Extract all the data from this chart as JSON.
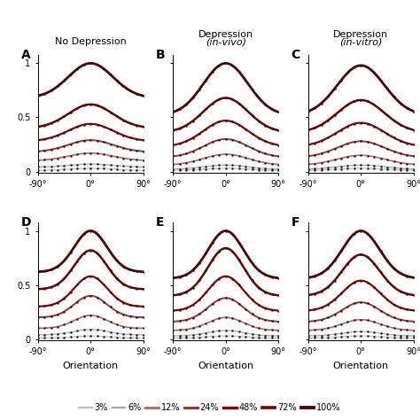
{
  "titles_top": [
    "No Depression",
    "Depression\n(in-vivo)",
    "Depression\n(in-vitro)"
  ],
  "panel_labels": [
    "A",
    "B",
    "C",
    "D",
    "E",
    "F"
  ],
  "xlabel": "Orientation",
  "contrast_labels": [
    "3%",
    "6%",
    "12%",
    "24%",
    "48%",
    "72%",
    "100%"
  ],
  "contrast_colors": [
    "#c0c0c0",
    "#a8a8a8",
    "#c06060",
    "#a03030",
    "#880000",
    "#6e0000",
    "#550000"
  ],
  "contrast_linewidths": [
    0.9,
    0.9,
    1.2,
    1.4,
    1.6,
    1.8,
    2.0
  ],
  "x_ticks": [
    -90,
    0,
    90
  ],
  "x_tick_labels": [
    "-90°",
    "0°",
    "90°"
  ],
  "ylim": [
    -0.01,
    1.08
  ],
  "yticks": [
    0,
    0.5,
    1
  ],
  "panels": {
    "A": {
      "offsets": [
        0.01,
        0.04,
        0.1,
        0.18,
        0.28,
        0.4,
        0.68
      ],
      "amplitudes": [
        0.02,
        0.03,
        0.07,
        0.11,
        0.16,
        0.22,
        0.32
      ],
      "sigma": 38
    },
    "B": {
      "offsets": [
        0.01,
        0.02,
        0.06,
        0.13,
        0.23,
        0.36,
        0.52
      ],
      "amplitudes": [
        0.02,
        0.04,
        0.1,
        0.17,
        0.24,
        0.32,
        0.48
      ],
      "sigma": 38
    },
    "C": {
      "offsets": [
        0.01,
        0.02,
        0.06,
        0.13,
        0.23,
        0.36,
        0.52
      ],
      "amplitudes": [
        0.02,
        0.04,
        0.09,
        0.15,
        0.22,
        0.3,
        0.46
      ],
      "sigma": 40
    },
    "D": {
      "offsets": [
        0.01,
        0.04,
        0.1,
        0.2,
        0.3,
        0.46,
        0.62
      ],
      "amplitudes": [
        0.02,
        0.05,
        0.12,
        0.2,
        0.28,
        0.36,
        0.38
      ],
      "sigma": 28
    },
    "E": {
      "offsets": [
        0.01,
        0.03,
        0.08,
        0.16,
        0.26,
        0.4,
        0.56
      ],
      "amplitudes": [
        0.02,
        0.05,
        0.12,
        0.22,
        0.32,
        0.44,
        0.44
      ],
      "sigma": 30
    },
    "F": {
      "offsets": [
        0.01,
        0.03,
        0.08,
        0.16,
        0.26,
        0.4,
        0.56
      ],
      "amplitudes": [
        0.02,
        0.04,
        0.1,
        0.18,
        0.28,
        0.38,
        0.44
      ],
      "sigma": 32
    }
  }
}
